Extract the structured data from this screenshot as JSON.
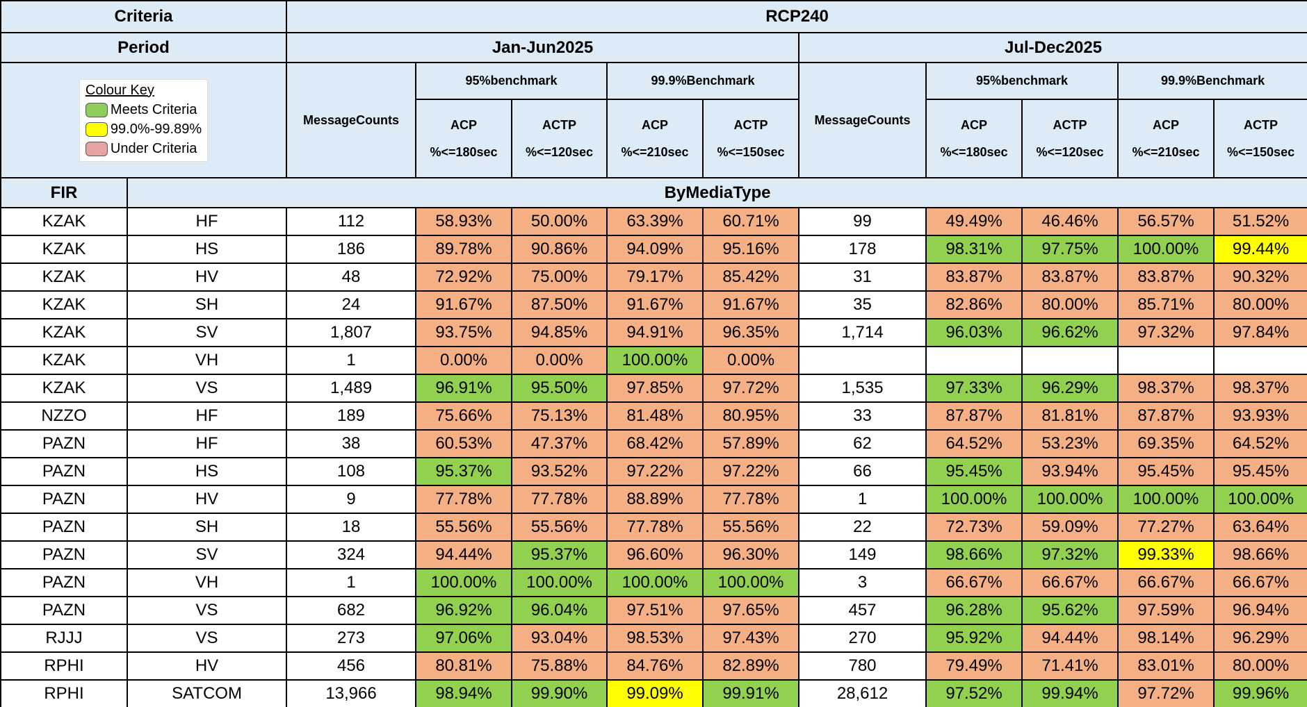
{
  "header": {
    "criteria": "Criteria",
    "rcp": "RCP240",
    "period": "Period",
    "periods": [
      "Jan-Jun2025",
      "Jul-Dec2025"
    ],
    "message_counts": "MessageCounts",
    "benchmarks": [
      "95%benchmark",
      "99.9%Benchmark"
    ],
    "columns": [
      {
        "name": "ACP",
        "limit": "%<=180sec"
      },
      {
        "name": "ACTP",
        "limit": "%<=120sec"
      },
      {
        "name": "ACP",
        "limit": "%<=210sec"
      },
      {
        "name": "ACTP",
        "limit": "%<=150sec"
      }
    ],
    "fir": "FIR",
    "by_media": "ByMediaType"
  },
  "colour_key": {
    "title": "Colour Key",
    "items": [
      {
        "label": "Meets Criteria",
        "color": "#8fce5a"
      },
      {
        "label": "99.0%-99.89%",
        "color": "#ffff00"
      },
      {
        "label": "Under Criteria",
        "color": "#e6a3a3"
      }
    ]
  },
  "table": {
    "rows": [
      {
        "fir": "KZAK",
        "media": "HF",
        "cells": [
          "112",
          "58.93%",
          "50.00%",
          "63.39%",
          "60.71%",
          "99",
          "49.49%",
          "46.46%",
          "56.57%",
          "51.52%"
        ],
        "fills": [
          "#f4b084",
          "#f4b084",
          "#f4b084",
          "#f4b084",
          "#f4b084",
          "#f4b084",
          "#f4b084",
          "#f4b084"
        ]
      },
      {
        "fir": "KZAK",
        "media": "HS",
        "cells": [
          "186",
          "89.78%",
          "90.86%",
          "94.09%",
          "95.16%",
          "178",
          "98.31%",
          "97.75%",
          "100.00%",
          "99.44%"
        ],
        "fills": [
          "#f4b084",
          "#f4b084",
          "#f4b084",
          "#f4b084",
          "#92d050",
          "#92d050",
          "#92d050",
          "#ffff00"
        ]
      },
      {
        "fir": "KZAK",
        "media": "HV",
        "cells": [
          "48",
          "72.92%",
          "75.00%",
          "79.17%",
          "85.42%",
          "31",
          "83.87%",
          "83.87%",
          "83.87%",
          "90.32%"
        ],
        "fills": [
          "#f4b084",
          "#f4b084",
          "#f4b084",
          "#f4b084",
          "#f4b084",
          "#f4b084",
          "#f4b084",
          "#f4b084"
        ]
      },
      {
        "fir": "KZAK",
        "media": "SH",
        "cells": [
          "24",
          "91.67%",
          "87.50%",
          "91.67%",
          "91.67%",
          "35",
          "82.86%",
          "80.00%",
          "85.71%",
          "80.00%"
        ],
        "fills": [
          "#f4b084",
          "#f4b084",
          "#f4b084",
          "#f4b084",
          "#f4b084",
          "#f4b084",
          "#f4b084",
          "#f4b084"
        ]
      },
      {
        "fir": "KZAK",
        "media": "SV",
        "cells": [
          "1,807",
          "93.75%",
          "94.85%",
          "94.91%",
          "96.35%",
          "1,714",
          "96.03%",
          "96.62%",
          "97.32%",
          "97.84%"
        ],
        "fills": [
          "#f4b084",
          "#f4b084",
          "#f4b084",
          "#f4b084",
          "#92d050",
          "#92d050",
          "#f4b084",
          "#f4b084"
        ]
      },
      {
        "fir": "KZAK",
        "media": "VH",
        "cells": [
          "1",
          "0.00%",
          "0.00%",
          "100.00%",
          "0.00%",
          null,
          null,
          null,
          null,
          null
        ],
        "fills": [
          "#f4b084",
          "#f4b084",
          "#92d050",
          "#f4b084",
          null,
          null,
          null,
          null
        ]
      },
      {
        "fir": "KZAK",
        "media": "VS",
        "cells": [
          "1,489",
          "96.91%",
          "95.50%",
          "97.85%",
          "97.72%",
          "1,535",
          "97.33%",
          "96.29%",
          "98.37%",
          "98.37%"
        ],
        "fills": [
          "#92d050",
          "#92d050",
          "#f4b084",
          "#f4b084",
          "#92d050",
          "#92d050",
          "#f4b084",
          "#f4b084"
        ]
      },
      {
        "fir": "NZZO",
        "media": "HF",
        "cells": [
          "189",
          "75.66%",
          "75.13%",
          "81.48%",
          "80.95%",
          "33",
          "87.87%",
          "81.81%",
          "87.87%",
          "93.93%"
        ],
        "fills": [
          "#f4b084",
          "#f4b084",
          "#f4b084",
          "#f4b084",
          "#f4b084",
          "#f4b084",
          "#f4b084",
          "#f4b084"
        ]
      },
      {
        "fir": "PAZN",
        "media": "HF",
        "cells": [
          "38",
          "60.53%",
          "47.37%",
          "68.42%",
          "57.89%",
          "62",
          "64.52%",
          "53.23%",
          "69.35%",
          "64.52%"
        ],
        "fills": [
          "#f4b084",
          "#f4b084",
          "#f4b084",
          "#f4b084",
          "#f4b084",
          "#f4b084",
          "#f4b084",
          "#f4b084"
        ]
      },
      {
        "fir": "PAZN",
        "media": "HS",
        "cells": [
          "108",
          "95.37%",
          "93.52%",
          "97.22%",
          "97.22%",
          "66",
          "95.45%",
          "93.94%",
          "95.45%",
          "95.45%"
        ],
        "fills": [
          "#92d050",
          "#f4b084",
          "#f4b084",
          "#f4b084",
          "#92d050",
          "#f4b084",
          "#f4b084",
          "#f4b084"
        ]
      },
      {
        "fir": "PAZN",
        "media": "HV",
        "cells": [
          "9",
          "77.78%",
          "77.78%",
          "88.89%",
          "77.78%",
          "1",
          "100.00%",
          "100.00%",
          "100.00%",
          "100.00%"
        ],
        "fills": [
          "#f4b084",
          "#f4b084",
          "#f4b084",
          "#f4b084",
          "#92d050",
          "#92d050",
          "#92d050",
          "#92d050"
        ]
      },
      {
        "fir": "PAZN",
        "media": "SH",
        "cells": [
          "18",
          "55.56%",
          "55.56%",
          "77.78%",
          "55.56%",
          "22",
          "72.73%",
          "59.09%",
          "77.27%",
          "63.64%"
        ],
        "fills": [
          "#f4b084",
          "#f4b084",
          "#f4b084",
          "#f4b084",
          "#f4b084",
          "#f4b084",
          "#f4b084",
          "#f4b084"
        ]
      },
      {
        "fir": "PAZN",
        "media": "SV",
        "cells": [
          "324",
          "94.44%",
          "95.37%",
          "96.60%",
          "96.30%",
          "149",
          "98.66%",
          "97.32%",
          "99.33%",
          "98.66%"
        ],
        "fills": [
          "#f4b084",
          "#92d050",
          "#f4b084",
          "#f4b084",
          "#92d050",
          "#92d050",
          "#ffff00",
          "#f4b084"
        ]
      },
      {
        "fir": "PAZN",
        "media": "VH",
        "cells": [
          "1",
          "100.00%",
          "100.00%",
          "100.00%",
          "100.00%",
          "3",
          "66.67%",
          "66.67%",
          "66.67%",
          "66.67%"
        ],
        "fills": [
          "#92d050",
          "#92d050",
          "#92d050",
          "#92d050",
          "#f4b084",
          "#f4b084",
          "#f4b084",
          "#f4b084"
        ]
      },
      {
        "fir": "PAZN",
        "media": "VS",
        "cells": [
          "682",
          "96.92%",
          "96.04%",
          "97.51%",
          "97.65%",
          "457",
          "96.28%",
          "95.62%",
          "97.59%",
          "96.94%"
        ],
        "fills": [
          "#92d050",
          "#92d050",
          "#f4b084",
          "#f4b084",
          "#92d050",
          "#92d050",
          "#f4b084",
          "#f4b084"
        ]
      },
      {
        "fir": "RJJJ",
        "media": "VS",
        "cells": [
          "273",
          "97.06%",
          "93.04%",
          "98.53%",
          "97.43%",
          "270",
          "95.92%",
          "94.44%",
          "98.14%",
          "96.29%"
        ],
        "fills": [
          "#92d050",
          "#f4b084",
          "#f4b084",
          "#f4b084",
          "#92d050",
          "#f4b084",
          "#f4b084",
          "#f4b084"
        ]
      },
      {
        "fir": "RPHI",
        "media": "HV",
        "cells": [
          "456",
          "80.81%",
          "75.88%",
          "84.76%",
          "82.89%",
          "780",
          "79.49%",
          "71.41%",
          "83.01%",
          "80.00%"
        ],
        "fills": [
          "#f4b084",
          "#f4b084",
          "#f4b084",
          "#f4b084",
          "#f4b084",
          "#f4b084",
          "#f4b084",
          "#f4b084"
        ]
      },
      {
        "fir": "RPHI",
        "media": "SATCOM",
        "cells": [
          "13,966",
          "98.94%",
          "99.90%",
          "99.09%",
          "99.91%",
          "28,612",
          "97.52%",
          "99.94%",
          "97.72%",
          "99.96%"
        ],
        "fills": [
          "#92d050",
          "#92d050",
          "#ffff00",
          "#92d050",
          "#92d050",
          "#92d050",
          "#f4b084",
          "#92d050"
        ]
      }
    ]
  }
}
